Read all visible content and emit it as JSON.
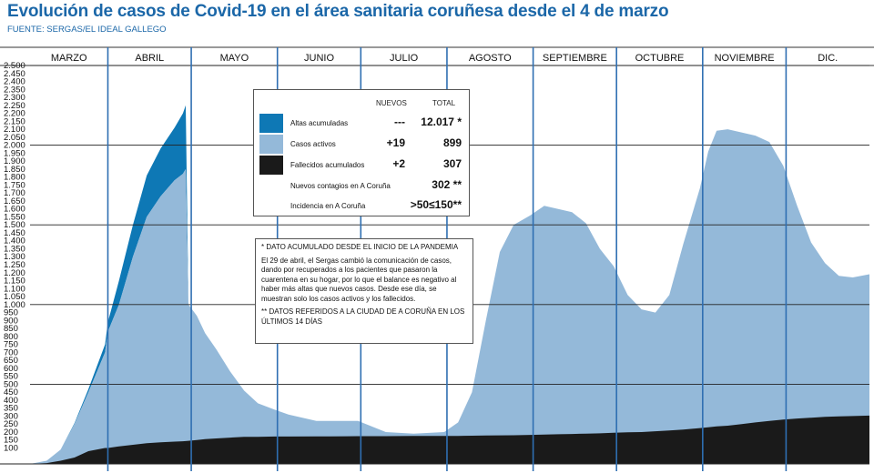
{
  "title": "Evolución de casos de Covid-19 en el área sanitaria coruñesa desde el 4 de marzo",
  "source": "FUENTE: SERGAS/EL IDEAL GALLEGO",
  "colors": {
    "title": "#1b67a8",
    "altas": "#0e78b5",
    "activos": "#94b9d9",
    "fallecidos": "#1a1a1a",
    "month_line": "#2f6fb2",
    "grid": "#222222"
  },
  "legend": {
    "header_new": "NUEVOS",
    "header_total": "TOTAL",
    "rows": [
      {
        "label": "Altas acumuladas",
        "new": "---",
        "total": "12.017 *",
        "swatch": "altas"
      },
      {
        "label": "Casos activos",
        "new": "+19",
        "total": "899",
        "swatch": "activos"
      },
      {
        "label": "Fallecidos acumulados",
        "new": "+2",
        "total": "307",
        "swatch": "fallecidos"
      },
      {
        "label": "Nuevos contagios en A Coruña",
        "new": "",
        "total": "302 **",
        "swatch": ""
      },
      {
        "label": "Incidencia en A Coruña",
        "new": "",
        "total": ">50≤150**",
        "swatch": ""
      }
    ]
  },
  "notes": {
    "note1": "* DATO ACUMULADO DESDE EL INICIO DE LA PANDEMIA",
    "note2": "El 29 de abril, el Sergas cambió la comunicación de casos, dando por recuperados a los pacientes que pasaron la cuarentena en su hogar, por lo que el balance es negativo al haber más altas que nuevos casos. Desde ese día, se muestran solo los casos activos y los fallecidos.",
    "note3": "** DATOS REFERIDOS A LA CIUDAD DE A CORUÑA EN LOS ÚLTIMOS 14 DÍAS"
  },
  "chart_data": {
    "type": "area",
    "x_unit": "fecha (2020), desde el 4 de marzo",
    "months": [
      "MARZO",
      "ABRIL",
      "MAYO",
      "JUNIO",
      "JULIO",
      "AGOSTO",
      "SEPTIEMBRE",
      "OCTUBRE",
      "NOVIEMBRE",
      "DIC."
    ],
    "y_ticks": [
      "100",
      "150",
      "200",
      "250",
      "300",
      "350",
      "400",
      "450",
      "500",
      "550",
      "600",
      "650",
      "700",
      "750",
      "800",
      "850",
      "900",
      "950",
      "1.000",
      "1.050",
      "1.100",
      "1.150",
      "1.200",
      "1.250",
      "1.300",
      "1.350",
      "1.400",
      "1.450",
      "1.500",
      "1.550",
      "1.600",
      "1.650",
      "1.700",
      "1.750",
      "1.800",
      "1.850",
      "1.900",
      "1.950",
      "2.000",
      "2.050",
      "2.100",
      "2.150",
      "2.200",
      "2.250",
      "2.300",
      "2.350",
      "2.400",
      "2.450",
      "2.500"
    ],
    "ylim": [
      0,
      2500
    ],
    "x": [
      "03-04",
      "03-10",
      "03-15",
      "03-20",
      "03-25",
      "03-31",
      "04-01",
      "04-05",
      "04-10",
      "04-15",
      "04-20",
      "04-25",
      "04-28",
      "04-29",
      "04-30",
      "05-03",
      "05-06",
      "05-10",
      "05-15",
      "05-20",
      "05-25",
      "05-31",
      "06-05",
      "06-15",
      "06-20",
      "06-30",
      "07-10",
      "07-20",
      "07-31",
      "08-05",
      "08-10",
      "08-15",
      "08-20",
      "08-25",
      "08-31",
      "09-05",
      "09-10",
      "09-15",
      "09-20",
      "09-25",
      "09-30",
      "10-05",
      "10-10",
      "10-15",
      "10-20",
      "10-25",
      "10-31",
      "11-03",
      "11-06",
      "11-10",
      "11-15",
      "11-20",
      "11-25",
      "11-30",
      "12-05",
      "12-10",
      "12-15",
      "12-20",
      "12-25",
      "12-31"
    ],
    "series": [
      {
        "name": "Fallecidos acumulados",
        "values": [
          0,
          5,
          20,
          40,
          80,
          100,
          100,
          110,
          120,
          130,
          135,
          140,
          142,
          143,
          145,
          150,
          155,
          160,
          165,
          170,
          170,
          172,
          172,
          173,
          173,
          174,
          174,
          175,
          176,
          176,
          177,
          178,
          179,
          180,
          182,
          184,
          186,
          188,
          190,
          192,
          195,
          198,
          200,
          205,
          210,
          215,
          225,
          230,
          235,
          240,
          250,
          260,
          270,
          278,
          285,
          290,
          295,
          298,
          300,
          303
        ]
      },
      {
        "name": "Casos activos",
        "values": [
          0,
          20,
          90,
          250,
          450,
          700,
          830,
          1000,
          1300,
          1550,
          1680,
          1780,
          1820,
          1850,
          1000,
          930,
          820,
          720,
          580,
          460,
          380,
          340,
          310,
          270,
          270,
          270,
          200,
          190,
          200,
          260,
          450,
          900,
          1330,
          1500,
          1560,
          1620,
          1600,
          1580,
          1510,
          1350,
          1240,
          1060,
          970,
          950,
          1060,
          1380,
          1730,
          1960,
          2090,
          2100,
          2080,
          2060,
          2020,
          1870,
          1620,
          1390,
          1260,
          1180,
          1170,
          1190
        ]
      },
      {
        "name": "Altas acumuladas",
        "values": [
          0,
          0,
          0,
          5,
          20,
          50,
          60,
          150,
          200,
          260,
          300,
          330,
          380,
          400,
          0,
          0,
          0,
          0,
          0,
          0,
          0,
          0,
          0,
          0,
          0,
          0,
          0,
          0,
          0,
          0,
          0,
          0,
          0,
          0,
          0,
          0,
          0,
          0,
          0,
          0,
          0,
          0,
          0,
          0,
          0,
          0,
          0,
          0,
          0,
          0,
          0,
          0,
          0,
          0,
          0,
          0,
          0,
          0,
          0,
          0
        ]
      }
    ],
    "stacking": "Fallecidos at base; Casos activos plotted to total height; Altas drawn on top until 29 abril"
  }
}
